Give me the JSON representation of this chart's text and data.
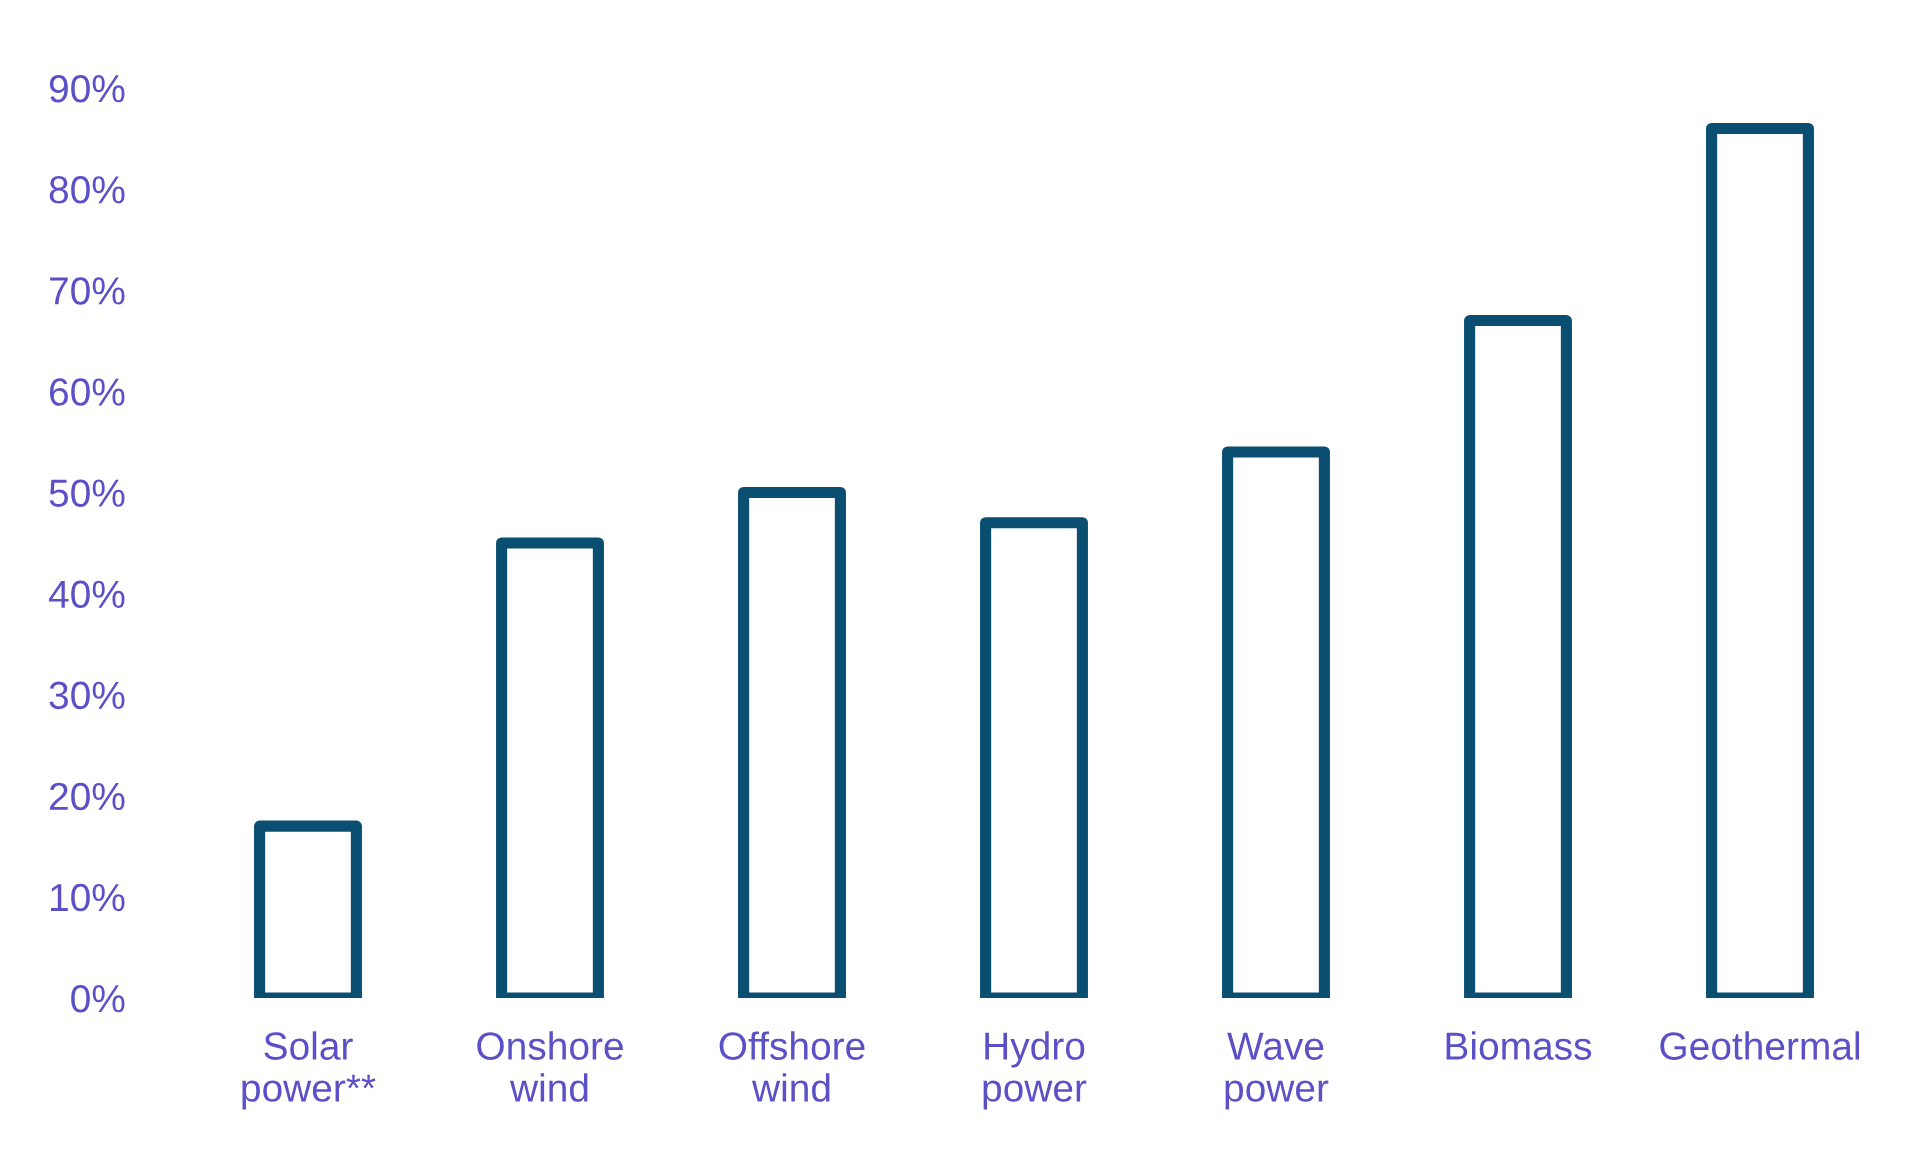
{
  "chart_data": {
    "type": "bar",
    "categories": [
      "Solar\npower**",
      "Onshore\nwind",
      "Offshore\nwind",
      "Hydro\npower",
      "Wave\npower",
      "Biomass",
      "Geothermal"
    ],
    "values": [
      17,
      45,
      50,
      47,
      54,
      67,
      86
    ],
    "color": "#0a4f72",
    "ylim": [
      0,
      90
    ],
    "yticks": [
      {
        "value": 0,
        "label": "0%"
      },
      {
        "value": 10,
        "label": "10%"
      },
      {
        "value": 20,
        "label": "20%"
      },
      {
        "value": 30,
        "label": "30%"
      },
      {
        "value": 40,
        "label": "40%"
      },
      {
        "value": 50,
        "label": "50%"
      },
      {
        "value": 60,
        "label": "60%"
      },
      {
        "value": 70,
        "label": "70%"
      },
      {
        "value": 80,
        "label": "80%"
      },
      {
        "value": 90,
        "label": "90%"
      }
    ],
    "grid": false
  }
}
